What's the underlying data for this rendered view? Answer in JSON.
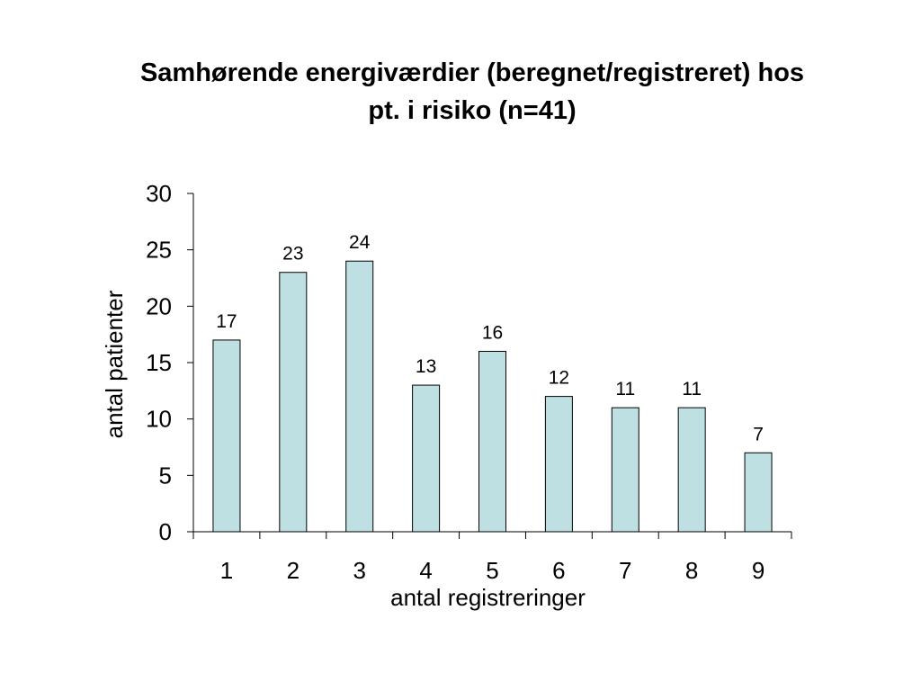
{
  "chart_data": {
    "type": "bar",
    "title_lines": [
      "Samhørende energiværdier (beregnet/registreret) hos",
      "pt. i risiko (n=41)"
    ],
    "categories": [
      "1",
      "2",
      "3",
      "4",
      "5",
      "6",
      "7",
      "8",
      "9"
    ],
    "values": [
      17,
      23,
      24,
      13,
      16,
      12,
      11,
      11,
      7
    ],
    "data_labels": [
      "17",
      "23",
      "24",
      "13",
      "16",
      "12",
      "11",
      "11",
      "7"
    ],
    "xlabel": "antal registreringer",
    "ylabel": "antal patienter",
    "ylim": [
      0,
      30
    ],
    "yticks": [
      "0",
      "5",
      "10",
      "15",
      "20",
      "25",
      "30"
    ],
    "grid": false,
    "legend": "none",
    "bar_color": "#bfe0e2",
    "bar_edge_color": "#000000"
  }
}
